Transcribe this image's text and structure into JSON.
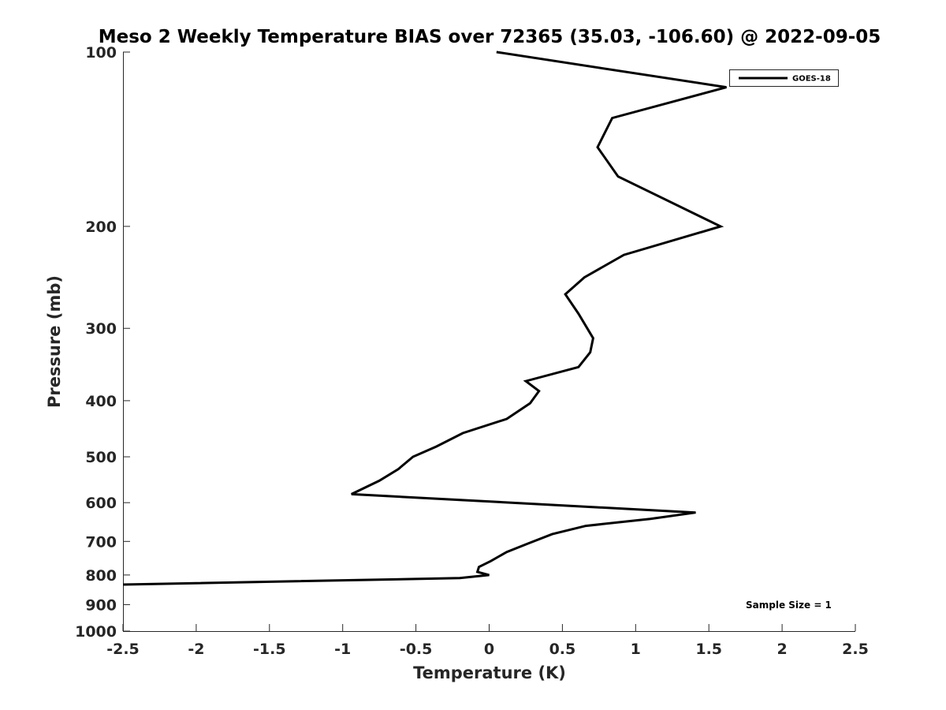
{
  "chart_data": {
    "type": "line",
    "title": "Meso 2 Weekly Temperature BIAS over 72365 (35.03, -106.60) @ 2022-09-05",
    "xlabel": "Temperature (K)",
    "ylabel": "Pressure (mb)",
    "xlim": [
      -2.5,
      2.5
    ],
    "ylim": [
      100,
      1000
    ],
    "y_scale": "log",
    "y_reversed": true,
    "x_ticks": [
      "-2.5",
      "-2",
      "-1.5",
      "-1",
      "-0.5",
      "0",
      "0.5",
      "1",
      "1.5",
      "2",
      "2.5"
    ],
    "x_tick_values": [
      -2.5,
      -2,
      -1.5,
      -1,
      -0.5,
      0,
      0.5,
      1,
      1.5,
      2,
      2.5
    ],
    "y_ticks": [
      "100",
      "200",
      "300",
      "400",
      "500",
      "600",
      "700",
      "800",
      "900",
      "1000"
    ],
    "y_tick_values": [
      100,
      200,
      300,
      400,
      500,
      600,
      700,
      800,
      900,
      1000
    ],
    "grid": false,
    "legend_position": "top-right",
    "line_color": "#000000",
    "series": [
      {
        "name": "GOES-18",
        "x": [
          0.05,
          1.62,
          0.84,
          0.74,
          0.88,
          1.58,
          0.92,
          0.65,
          0.52,
          0.61,
          0.71,
          0.69,
          0.61,
          0.25,
          0.34,
          0.28,
          0.12,
          -0.18,
          -0.36,
          -0.52,
          -0.62,
          -0.75,
          -0.94,
          1.41,
          1.1,
          0.66,
          0.43,
          0.27,
          0.12,
          0.01,
          -0.07,
          -0.08,
          0.0,
          -0.2,
          -2.5
        ],
        "y": [
          100,
          115,
          130,
          146,
          164,
          200,
          224,
          245,
          262,
          283,
          312,
          330,
          350,
          370,
          385,
          404,
          430,
          455,
          480,
          500,
          525,
          550,
          580,
          624,
          640,
          658,
          680,
          705,
          730,
          757,
          775,
          790,
          800,
          810,
          831
        ]
      }
    ],
    "annotation": "Sample Size = 1"
  }
}
